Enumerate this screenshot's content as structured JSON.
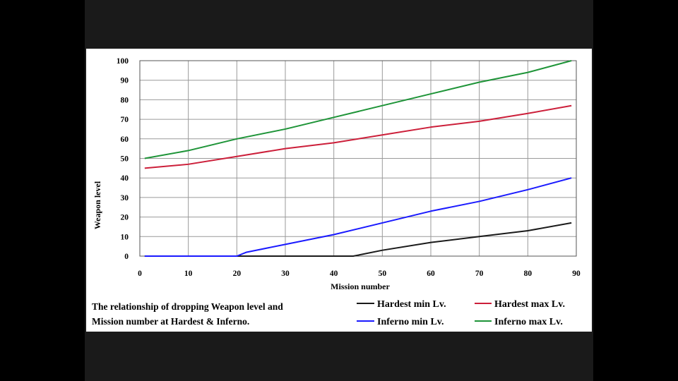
{
  "chart_data": {
    "type": "line",
    "title": "",
    "xlabel": "Mission number",
    "ylabel": "Weapon level",
    "xlim": [
      0,
      90
    ],
    "ylim": [
      0,
      100
    ],
    "x_ticks": [
      0,
      10,
      20,
      30,
      40,
      50,
      60,
      70,
      80,
      90
    ],
    "x_tick_labels": [
      "0",
      "10",
      "20",
      "30",
      "40",
      "50",
      "60",
      "70",
      "80",
      "90"
    ],
    "y_ticks": [
      0,
      10,
      20,
      30,
      40,
      50,
      60,
      70,
      80,
      90,
      100
    ],
    "y_tick_labels": [
      "0",
      "10",
      "20",
      "30",
      "40",
      "50",
      "60",
      "70",
      "80",
      "90",
      "100"
    ],
    "grid": true,
    "legend_position": "bottom-right",
    "caption_lines": [
      "The relationship of dropping Weapon level and",
      "Mission number at Hardest & Inferno."
    ],
    "series": [
      {
        "name": "Hardest min Lv.",
        "color": "#1a1a1a",
        "x": [
          1,
          44,
          46,
          50,
          60,
          70,
          80,
          89
        ],
        "y": [
          0,
          0,
          1,
          3,
          7,
          10,
          13,
          17
        ]
      },
      {
        "name": "Hardest max Lv.",
        "color": "#cc1f3a",
        "x": [
          1,
          10,
          20,
          30,
          40,
          50,
          60,
          70,
          80,
          89
        ],
        "y": [
          45,
          47,
          51,
          55,
          58,
          62,
          66,
          69,
          73,
          77
        ]
      },
      {
        "name": "Inferno min Lv.",
        "color": "#1a1aff",
        "x": [
          1,
          20,
          22,
          30,
          40,
          50,
          60,
          70,
          80,
          89
        ],
        "y": [
          0,
          0,
          2,
          6,
          11,
          17,
          23,
          28,
          34,
          40
        ]
      },
      {
        "name": "Inferno max Lv.",
        "color": "#1e9438",
        "x": [
          1,
          10,
          20,
          30,
          40,
          50,
          60,
          70,
          80,
          89
        ],
        "y": [
          50,
          54,
          60,
          65,
          71,
          77,
          83,
          89,
          94,
          100
        ]
      }
    ]
  }
}
